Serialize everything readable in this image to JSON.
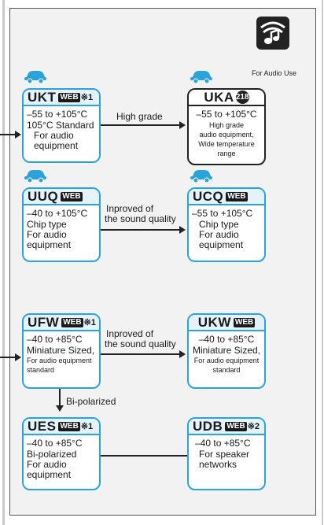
{
  "audio": {
    "label": "For Audio Use",
    "icon": "audio-note-icon"
  },
  "web_badge": "WEB",
  "boxes": {
    "ukt": {
      "code": "UKT",
      "note": "※1",
      "temp": "–55 to +105°C",
      "l1": "105°C Standard",
      "l2": "For audio",
      "l3": "equipment"
    },
    "uka": {
      "code": "UKA",
      "badge": "218",
      "temp": "–55 to +105°C",
      "l1": "High grade",
      "l2": "audio equipment,",
      "l3": "Wide temperature range"
    },
    "uuq": {
      "code": "UUQ",
      "temp": "–40 to +105°C",
      "l1": "Chip type",
      "l2": "For audio",
      "l3": "equipment"
    },
    "ucq": {
      "code": "UCQ",
      "temp": "–55 to +105°C",
      "l1": "Chip type",
      "l2": "For audio",
      "l3": "equipment"
    },
    "ufw": {
      "code": "UFW",
      "note": "※1",
      "temp": "–40 to +85°C",
      "l1": "Miniature Sized,",
      "l2": "For audio equipment",
      "l3": "standard"
    },
    "ukw": {
      "code": "UKW",
      "temp": "–40 to +85°C",
      "l1": "Miniature Sized,",
      "l2": "For audio equipment",
      "l3": "standard"
    },
    "ues": {
      "code": "UES",
      "note": "※1",
      "temp": "–40 to +85°C",
      "l1": "Bi-polarized",
      "l2": "For audio",
      "l3": "equipment"
    },
    "udb": {
      "code": "UDB",
      "note": "※2",
      "temp": "–40 to +85°C",
      "l1": "For speaker",
      "l2": "networks"
    }
  },
  "edges": {
    "ukt_uka": "High grade",
    "uuq_ucq_1": "Inproved of",
    "uuq_ucq_2": "the sound quality",
    "ufw_ukw_1": "Inproved of",
    "ufw_ukw_2": "the sound quality",
    "ufw_ues": "Bi-polarized"
  },
  "colors": {
    "accent": "#2ba3d9",
    "header_fill": "#e4f3fb",
    "dark": "#222222",
    "panel": "#f2f2f2"
  }
}
